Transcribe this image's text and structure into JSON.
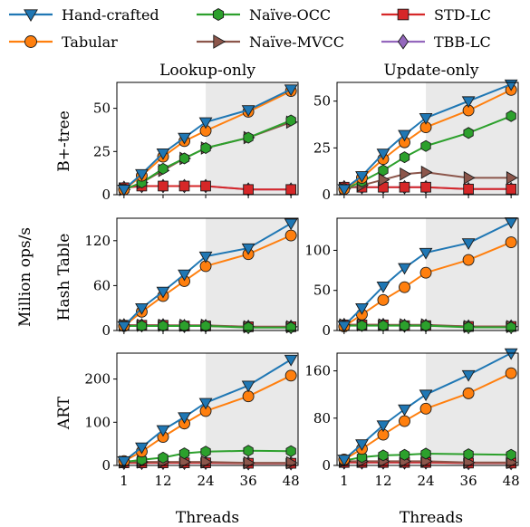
{
  "chart_data": {
    "type": "line",
    "legend": {
      "placement": "top",
      "entries": [
        {
          "key": "hand",
          "name": "Hand-crafted"
        },
        {
          "key": "nocc",
          "name": "Naïve-OCC"
        },
        {
          "key": "std",
          "name": "STD-LC"
        },
        {
          "key": "tab",
          "name": "Tabular"
        },
        {
          "key": "nmvcc",
          "name": "Naïve-MVCC"
        },
        {
          "key": "tbb",
          "name": "TBB-LC"
        }
      ]
    },
    "styles": {
      "hand": {
        "color": "#1f77b4",
        "fill": "#1f77b4",
        "marker": "triangle-down"
      },
      "tab": {
        "color": "#ff7f0e",
        "fill": "#ff7f0e",
        "marker": "circle"
      },
      "nocc": {
        "color": "#2ca02c",
        "fill": "#2ca02c",
        "marker": "hexagon"
      },
      "nmvcc": {
        "color": "#8c564b",
        "fill": "#8c564b",
        "marker": "triangle-right"
      },
      "std": {
        "color": "#d62728",
        "fill": "#d62728",
        "marker": "square"
      },
      "tbb": {
        "color": "#9467bd",
        "fill": "#9467bd",
        "marker": "diamond"
      }
    },
    "shaded_x_range": [
      24,
      48
    ],
    "shade_color": "#e9e9e9",
    "columns": [
      "Lookup-only",
      "Update-only"
    ],
    "rows": [
      "B+-tree",
      "Hash Table",
      "ART"
    ],
    "ylabel": "Million ops/s",
    "xlabel": "Threads",
    "x": [
      1,
      6,
      12,
      18,
      24,
      36,
      48
    ],
    "xticks": [
      1,
      12,
      24,
      36,
      48
    ],
    "xlim": [
      -1,
      50
    ],
    "panels": [
      {
        "row": "B+-tree",
        "column": "Lookup-only",
        "ylim": [
          0,
          65
        ],
        "yticks": [
          0,
          25,
          50
        ],
        "series": {
          "hand": [
            3,
            12,
            24,
            33,
            42,
            49,
            61
          ],
          "tab": [
            3,
            11,
            22,
            31,
            37,
            48,
            60
          ],
          "nocc": [
            3,
            7,
            15,
            21,
            27,
            33,
            43
          ],
          "nmvcc": [
            3,
            7,
            14,
            21,
            27,
            33,
            42
          ],
          "std": [
            4,
            5,
            5,
            5,
            5,
            3,
            3
          ],
          "tbb": [
            4,
            5,
            5,
            5,
            5,
            3,
            3
          ]
        }
      },
      {
        "row": "B+-tree",
        "column": "Update-only",
        "ylim": [
          0,
          60
        ],
        "yticks": [
          0,
          25,
          50
        ],
        "series": {
          "hand": [
            3,
            10,
            22,
            32,
            41,
            50,
            59
          ],
          "tab": [
            3,
            9,
            19,
            28,
            36,
            45,
            56
          ],
          "nocc": [
            3,
            7,
            13,
            20,
            26,
            33,
            42
          ],
          "nmvcc": [
            3,
            5,
            8,
            11,
            12,
            9,
            9
          ],
          "std": [
            4,
            4,
            4,
            4,
            4,
            3,
            3
          ],
          "tbb": [
            4,
            4,
            4,
            4,
            4,
            3,
            3
          ]
        }
      },
      {
        "row": "Hash Table",
        "column": "Lookup-only",
        "ylim": [
          0,
          150
        ],
        "yticks": [
          0,
          60,
          120
        ],
        "series": {
          "hand": [
            6,
            30,
            52,
            75,
            99,
            110,
            143
          ],
          "tab": [
            6,
            25,
            46,
            66,
            86,
            102,
            127
          ],
          "nocc": [
            6,
            6,
            6,
            6,
            6,
            4,
            4
          ],
          "nmvcc": [
            7,
            7,
            7,
            7,
            7,
            5,
            5
          ],
          "std": [
            7,
            7,
            7,
            6,
            6,
            5,
            5
          ],
          "tbb": [
            7,
            7,
            7,
            6,
            6,
            5,
            5
          ]
        }
      },
      {
        "row": "Hash Table",
        "column": "Update-only",
        "ylim": [
          0,
          140
        ],
        "yticks": [
          0,
          50,
          100
        ],
        "series": {
          "hand": [
            6,
            28,
            55,
            78,
            97,
            109,
            135
          ],
          "tab": [
            5,
            20,
            38,
            54,
            72,
            88,
            110
          ],
          "nocc": [
            6,
            6,
            6,
            6,
            6,
            4,
            4
          ],
          "nmvcc": [
            7,
            7,
            7,
            7,
            7,
            5,
            5
          ],
          "std": [
            7,
            7,
            7,
            6,
            6,
            5,
            5
          ],
          "tbb": [
            7,
            7,
            7,
            6,
            6,
            5,
            5
          ]
        }
      },
      {
        "row": "ART",
        "column": "Lookup-only",
        "ylim": [
          0,
          260
        ],
        "yticks": [
          0,
          100,
          200
        ],
        "series": {
          "hand": [
            10,
            42,
            82,
            112,
            145,
            185,
            245
          ],
          "tab": [
            10,
            32,
            66,
            97,
            126,
            160,
            208
          ],
          "nocc": [
            8,
            13,
            18,
            28,
            32,
            34,
            33
          ],
          "nmvcc": [
            8,
            8,
            8,
            8,
            8,
            6,
            6
          ],
          "std": [
            6,
            6,
            6,
            6,
            6,
            5,
            5
          ],
          "tbb": [
            6,
            6,
            6,
            6,
            6,
            5,
            5
          ]
        }
      },
      {
        "row": "ART",
        "column": "Update-only",
        "ylim": [
          0,
          190
        ],
        "yticks": [
          0,
          80,
          160
        ],
        "series": {
          "hand": [
            10,
            36,
            68,
            95,
            120,
            153,
            190
          ],
          "tab": [
            10,
            28,
            52,
            75,
            96,
            122,
            156
          ],
          "nocc": [
            8,
            14,
            17,
            18,
            20,
            19,
            18
          ],
          "nmvcc": [
            7,
            7,
            7,
            7,
            7,
            5,
            5
          ],
          "std": [
            5,
            5,
            5,
            5,
            5,
            4,
            4
          ],
          "tbb": [
            5,
            5,
            5,
            5,
            5,
            4,
            4
          ]
        }
      }
    ]
  }
}
